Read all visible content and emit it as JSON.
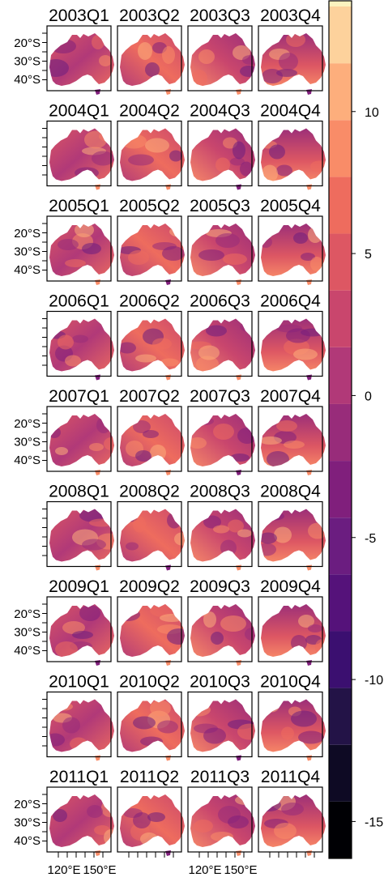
{
  "figure": {
    "panels": [
      [
        "2003Q1",
        "2003Q2",
        "2003Q3",
        "2003Q4"
      ],
      [
        "2004Q1",
        "2004Q2",
        "2004Q3",
        "2004Q4"
      ],
      [
        "2005Q1",
        "2005Q2",
        "2005Q3",
        "2005Q4"
      ],
      [
        "2006Q1",
        "2006Q2",
        "2006Q3",
        "2006Q4"
      ],
      [
        "2007Q1",
        "2007Q2",
        "2007Q3",
        "2007Q4"
      ],
      [
        "2008Q1",
        "2008Q2",
        "2008Q3",
        "2008Q4"
      ],
      [
        "2009Q1",
        "2009Q2",
        "2009Q3",
        "2009Q4"
      ],
      [
        "2010Q1",
        "2010Q2",
        "2010Q3",
        "2010Q4"
      ],
      [
        "2011Q1",
        "2011Q2",
        "2011Q3",
        "2011Q4"
      ]
    ],
    "lat_labels": [
      "20°S",
      "30°S",
      "40°S"
    ],
    "lat_label_rows": [
      0,
      2,
      4,
      6,
      8
    ],
    "lon_labels": [
      "120°E",
      "150°E"
    ],
    "lon_label_cols": [
      0,
      2
    ]
  },
  "colorbar": {
    "range": [
      -16.3,
      13.9
    ],
    "step": 2,
    "labels": [
      "10",
      "5",
      "0",
      "-5",
      "-10",
      "-15"
    ],
    "label_values": [
      10,
      5,
      0,
      -5,
      -10,
      -15
    ],
    "colors": [
      "#000004",
      "#0e0a24",
      "#231347",
      "#3b0f70",
      "#55127a",
      "#6b1d80",
      "#801f7c",
      "#982c7a",
      "#b13978",
      "#c9466d",
      "#dd5763",
      "#ee6c5e",
      "#f98c68",
      "#fdae7c",
      "#fdd29c",
      "#fcf3bf"
    ]
  }
}
